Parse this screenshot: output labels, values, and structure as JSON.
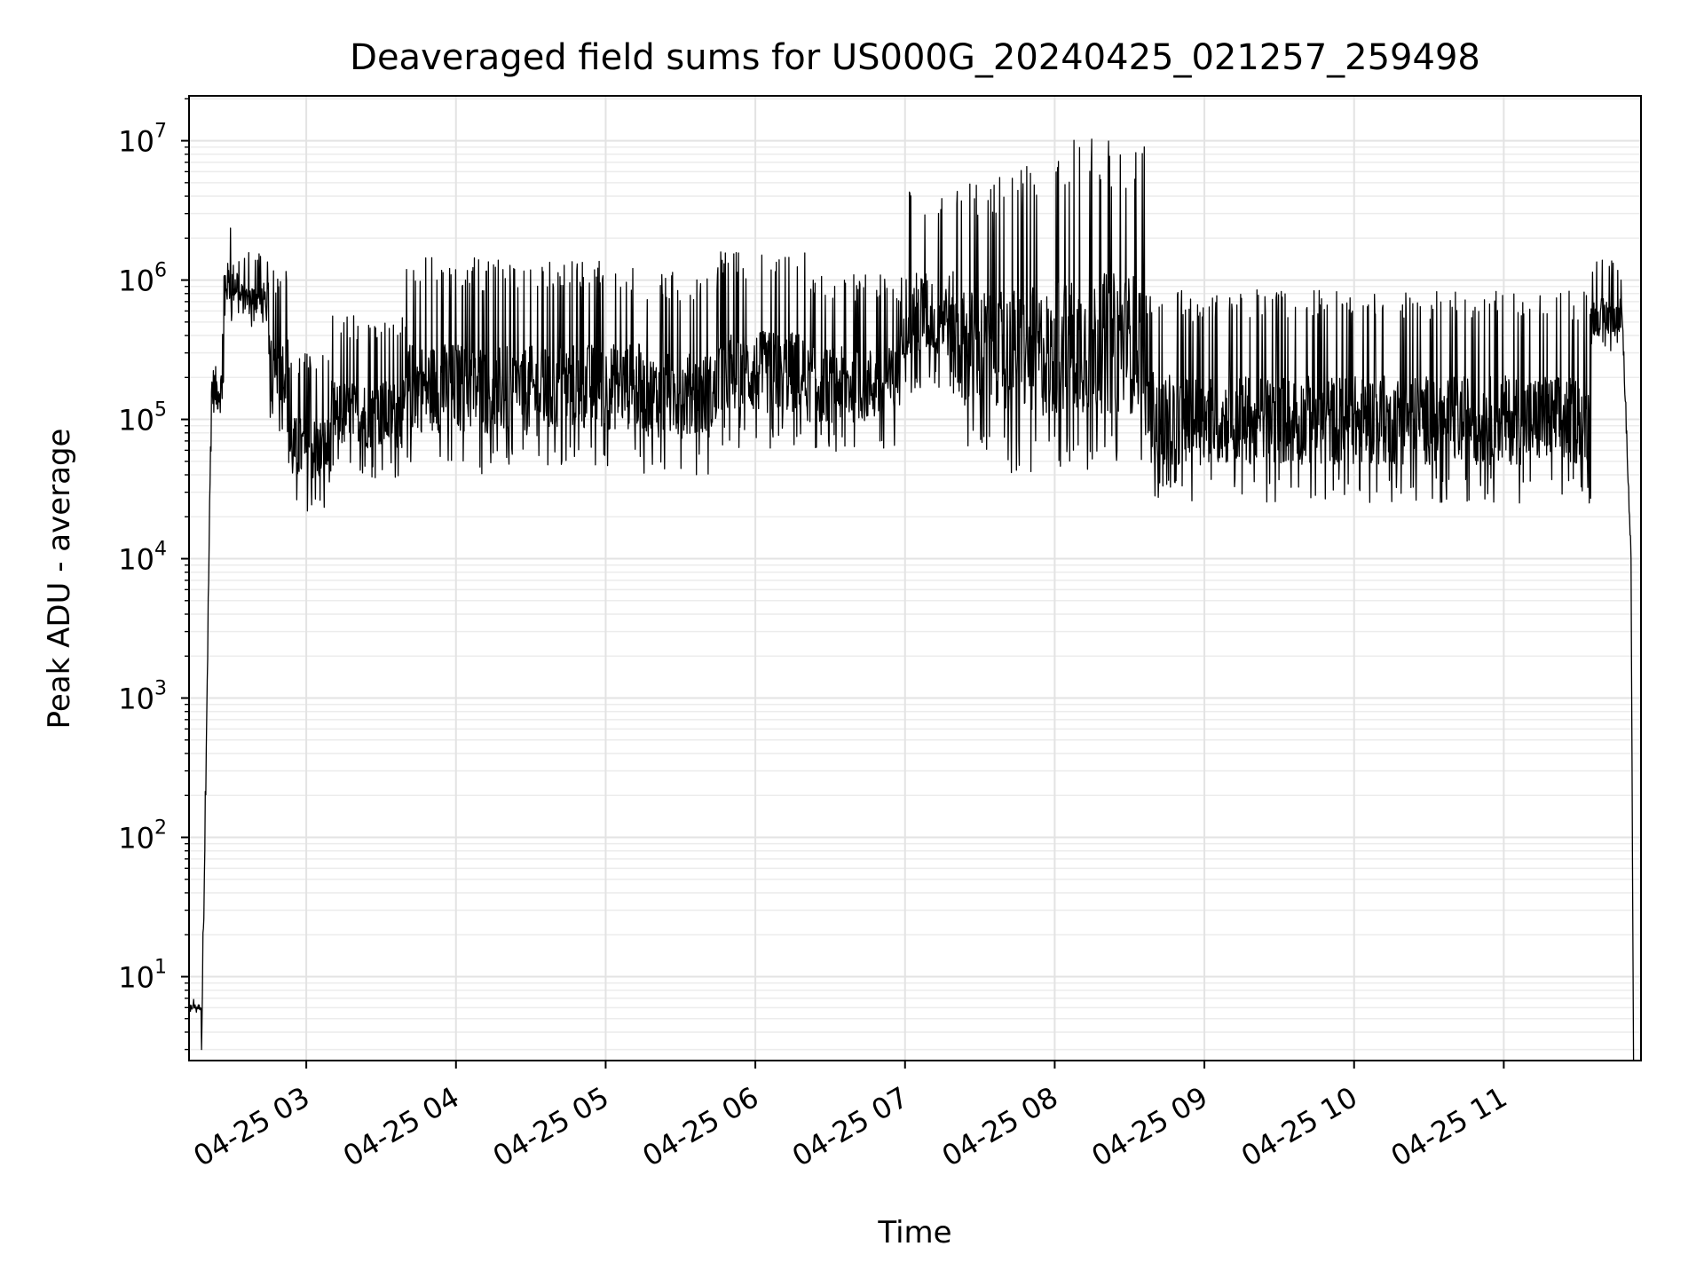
{
  "chart_data": {
    "type": "line",
    "title": "Deaveraged field sums for US000G_20240425_021257_259498",
    "xlabel": "Time",
    "ylabel": "Peak ADU - average",
    "yscale": "log",
    "ylim": [
      2.5,
      21000000.0
    ],
    "xlim": [
      "04-25 02:13",
      "04-25 11:55"
    ],
    "x_ticks": [
      "04-25 03",
      "04-25 04",
      "04-25 05",
      "04-25 06",
      "04-25 07",
      "04-25 08",
      "04-25 09",
      "04-25 10",
      "04-25 11"
    ],
    "x_tick_hours": [
      3,
      4,
      5,
      6,
      7,
      8,
      9,
      10,
      11
    ],
    "y_ticks": [
      {
        "base": "10",
        "exp": "1",
        "value": 10
      },
      {
        "base": "10",
        "exp": "2",
        "value": 100
      },
      {
        "base": "10",
        "exp": "3",
        "value": 1000
      },
      {
        "base": "10",
        "exp": "4",
        "value": 10000
      },
      {
        "base": "10",
        "exp": "5",
        "value": 100000
      },
      {
        "base": "10",
        "exp": "6",
        "value": 1000000
      },
      {
        "base": "10",
        "exp": "7",
        "value": 10000000
      }
    ],
    "grid": true,
    "color": "#000000",
    "segments": [
      {
        "start": "02:13",
        "end": "02:18",
        "low": 5.5,
        "high": 7
      },
      {
        "start": "02:18",
        "end": "02:22",
        "low": 3,
        "high": 150000
      },
      {
        "start": "02:22",
        "end": "02:27",
        "low": 80000,
        "high": 500000
      },
      {
        "start": "02:27",
        "end": "02:33",
        "low": 500000,
        "high": 2600000
      },
      {
        "start": "02:33",
        "end": "02:45",
        "low": 450000,
        "high": 1600000
      },
      {
        "start": "02:45",
        "end": "02:53",
        "low": 80000,
        "high": 1200000
      },
      {
        "start": "02:53",
        "end": "03:10",
        "low": 22000,
        "high": 300000
      },
      {
        "start": "03:10",
        "end": "03:40",
        "low": 38000,
        "high": 560000
      },
      {
        "start": "03:40",
        "end": "04:10",
        "low": 42000,
        "high": 1500000
      },
      {
        "start": "04:10",
        "end": "04:40",
        "low": 40000,
        "high": 1400000
      },
      {
        "start": "04:40",
        "end": "05:15",
        "low": 45000,
        "high": 1400000
      },
      {
        "start": "05:15",
        "end": "05:45",
        "low": 40000,
        "high": 1150000
      },
      {
        "start": "05:45",
        "end": "06:20",
        "low": 60000,
        "high": 1600000
      },
      {
        "start": "06:20",
        "end": "06:58",
        "low": 55000,
        "high": 1100000
      },
      {
        "start": "06:58",
        "end": "07:20",
        "low": 150000,
        "high": 4500000
      },
      {
        "start": "07:20",
        "end": "07:40",
        "low": 55000,
        "high": 5500000
      },
      {
        "start": "07:40",
        "end": "08:00",
        "low": 40000,
        "high": 7000000
      },
      {
        "start": "08:00",
        "end": "08:37",
        "low": 40000,
        "high": 10500000
      },
      {
        "start": "08:37",
        "end": "08:40",
        "low": 35000,
        "high": 800000
      },
      {
        "start": "08:40",
        "end": "11:35",
        "low": 25000,
        "high": 850000
      },
      {
        "start": "11:35",
        "end": "11:47",
        "low": 300000,
        "high": 1400000
      },
      {
        "start": "11:47",
        "end": "11:51",
        "low": 10000,
        "high": 1000000
      },
      {
        "start": "11:51",
        "end": "11:52",
        "low": 2.5,
        "high": 10000
      }
    ]
  }
}
